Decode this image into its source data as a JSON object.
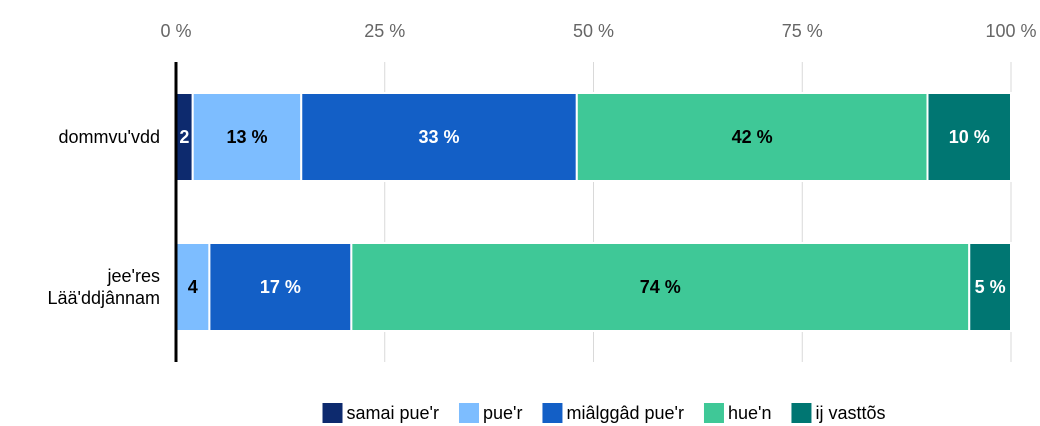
{
  "chart_data": {
    "type": "stacked_bar_horizontal",
    "categories": [
      "dommvu'vdd",
      "jee'res Lää'ddjânnam"
    ],
    "series": [
      {
        "name": "samai pue'r",
        "color": "#0d2a6e",
        "label_color": "#ffffff",
        "values": [
          2,
          0
        ],
        "value_labels": [
          "2",
          null
        ]
      },
      {
        "name": "pue'r",
        "color": "#7dbdff",
        "label_color": "#000000",
        "values": [
          13,
          4
        ],
        "value_labels": [
          "13 %",
          "4"
        ]
      },
      {
        "name": "miâlggâd pue'r",
        "color": "#135fc6",
        "label_color": "#ffffff",
        "values": [
          33,
          17
        ],
        "value_labels": [
          "33 %",
          "17 %"
        ]
      },
      {
        "name": "hue'n",
        "color": "#3fc897",
        "label_color": "#000000",
        "values": [
          42,
          74
        ],
        "value_labels": [
          "42 %",
          "74 %"
        ]
      },
      {
        "name": "ij vasttõs",
        "color": "#007672",
        "label_color": "#ffffff",
        "values": [
          10,
          5
        ],
        "value_labels": [
          "10 %",
          "5 %"
        ]
      }
    ],
    "xlim": [
      0,
      100
    ],
    "xticks": [
      {
        "value": 0,
        "label": "0 %"
      },
      {
        "value": 25,
        "label": "25 %"
      },
      {
        "value": 50,
        "label": "50 %"
      },
      {
        "value": 75,
        "label": "75 %"
      },
      {
        "value": 100,
        "label": "100 %"
      }
    ],
    "grid": true,
    "legend": "bottom"
  }
}
